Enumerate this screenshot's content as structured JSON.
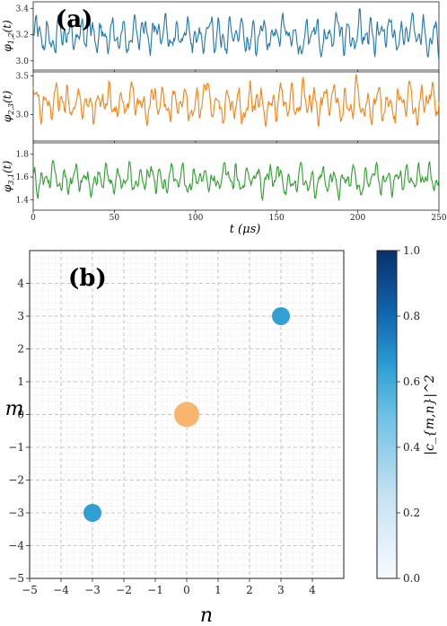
{
  "panel_a": {
    "label": "(a)",
    "xlabel": "t (μs)",
    "xticks": [
      "0",
      "50",
      "100",
      "150",
      "200",
      "250"
    ]
  },
  "panel_b": {
    "label": "(b)",
    "xlabel": "n",
    "ylabel": "m",
    "colorbar_label": "|c_{m,n}|^2",
    "colorbar_ticks": [
      "0.0",
      "0.2",
      "0.4",
      "0.6",
      "0.8",
      "1.0"
    ]
  },
  "colors": {
    "phi12": "#1f77b4",
    "phi23": "#ff7f0e",
    "phi31": "#2ca02c",
    "point_blue": "#2f9fd4",
    "point_orange": "#f9b56e"
  },
  "chart_data": [
    {
      "type": "line",
      "xlim": [
        0,
        250
      ],
      "panels": [
        {
          "ylabel": "φ_{1,2}(t)",
          "yticks": [
            3.0,
            3.2,
            3.4
          ],
          "ylim": [
            2.93,
            3.45
          ],
          "mean": 3.2,
          "amplitude": 0.2,
          "color": "#1f77b4"
        },
        {
          "ylabel": "φ_{2,3}(t)",
          "yticks": [
            3.0,
            3.5
          ],
          "ylim": [
            2.66,
            3.55
          ],
          "mean": 3.15,
          "amplitude": 0.32,
          "color": "#ff7f0e"
        },
        {
          "ylabel": "φ_{3,1}(t)",
          "yticks": [
            1.4,
            1.6,
            1.8
          ],
          "ylim": [
            1.31,
            1.9
          ],
          "mean": 1.58,
          "amplitude": 0.17,
          "color": "#2ca02c"
        }
      ]
    },
    {
      "type": "scatter",
      "xlabel": "n",
      "ylabel": "m",
      "xlim": [
        -5,
        5
      ],
      "ylim": [
        -5,
        5
      ],
      "xticks": [
        -5,
        -4,
        -3,
        -2,
        -1,
        0,
        1,
        2,
        3,
        4
      ],
      "yticks": [
        -5,
        -4,
        -3,
        -2,
        -1,
        0,
        1,
        2,
        3,
        4
      ],
      "grid": true,
      "colorbar_range": [
        0.0,
        1.0
      ],
      "points": [
        {
          "n": 0,
          "m": 0,
          "value": 0.98
        },
        {
          "n": 3,
          "m": 3,
          "value": 0.48
        },
        {
          "n": -3,
          "m": -3,
          "value": 0.48
        }
      ]
    }
  ]
}
